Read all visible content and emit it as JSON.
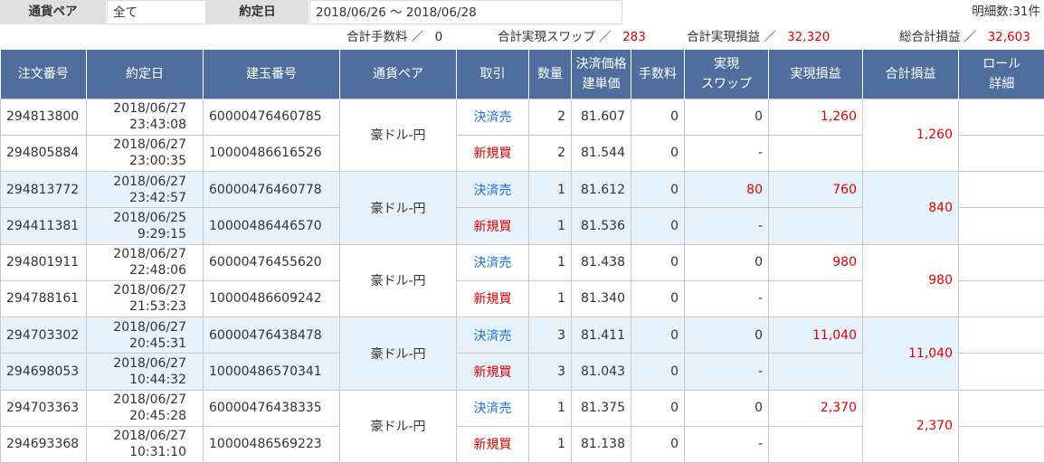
{
  "filter": {
    "pair_label": "通貨ペア",
    "pair_value": "全て",
    "date_label": "約定日",
    "date_value": "2018/06/26 ～ 2018/06/28",
    "row_count": "明細数:31件"
  },
  "totals": {
    "fee_label": "合計手数料 ／",
    "fee_value": "0",
    "swap_label": "合計実現スワップ ／",
    "swap_value": "283",
    "pl_label": "合計実現損益 ／",
    "pl_value": "32,320",
    "grand_label": "総合計損益 ／",
    "grand_value": "32,603"
  },
  "table": {
    "headers": {
      "order_no": "注文番号",
      "exec_date": "約定日",
      "position_no": "建玉番号",
      "pair": "通貨ペア",
      "trade": "取引",
      "qty": "数量",
      "price_1": "決済価格",
      "price_2": "建単価",
      "fee": "手数料",
      "swap_1": "実現",
      "swap_2": "スワップ",
      "realized_pl": "実現損益",
      "total_pl": "合計損益",
      "roll_1": "ロール",
      "roll_2": "詳細"
    },
    "groups": [
      {
        "pair": "豪ドル-円",
        "total_pl": "1,260",
        "rows": [
          {
            "order_no": "294813800",
            "date": "2018/06/27",
            "time": "23:43:08",
            "position_no": "60000476460785",
            "trade": "決済売",
            "qty": "2",
            "price": "81.607",
            "fee": "0",
            "swap": "0",
            "pl": "1,260"
          },
          {
            "order_no": "294805884",
            "date": "2018/06/27",
            "time": "23:00:35",
            "position_no": "10000486616526",
            "trade": "新規買",
            "qty": "2",
            "price": "81.544",
            "fee": "0",
            "swap": "-",
            "pl": ""
          }
        ]
      },
      {
        "pair": "豪ドル-円",
        "total_pl": "840",
        "rows": [
          {
            "order_no": "294813772",
            "date": "2018/06/27",
            "time": "23:42:57",
            "position_no": "60000476460778",
            "trade": "決済売",
            "qty": "1",
            "price": "81.612",
            "fee": "0",
            "swap": "80",
            "pl": "760"
          },
          {
            "order_no": "294411381",
            "date": "2018/06/25",
            "time": "9:29:15",
            "position_no": "10000486446570",
            "trade": "新規買",
            "qty": "1",
            "price": "81.536",
            "fee": "0",
            "swap": "-",
            "pl": ""
          }
        ]
      },
      {
        "pair": "豪ドル-円",
        "total_pl": "980",
        "rows": [
          {
            "order_no": "294801911",
            "date": "2018/06/27",
            "time": "22:48:06",
            "position_no": "60000476455620",
            "trade": "決済売",
            "qty": "1",
            "price": "81.438",
            "fee": "0",
            "swap": "0",
            "pl": "980"
          },
          {
            "order_no": "294788161",
            "date": "2018/06/27",
            "time": "21:53:23",
            "position_no": "10000486609242",
            "trade": "新規買",
            "qty": "1",
            "price": "81.340",
            "fee": "0",
            "swap": "-",
            "pl": ""
          }
        ]
      },
      {
        "pair": "豪ドル-円",
        "total_pl": "11,040",
        "rows": [
          {
            "order_no": "294703302",
            "date": "2018/06/27",
            "time": "20:45:31",
            "position_no": "60000476438478",
            "trade": "決済売",
            "qty": "3",
            "price": "81.411",
            "fee": "0",
            "swap": "0",
            "pl": "11,040"
          },
          {
            "order_no": "294698053",
            "date": "2018/06/27",
            "time": "10:44:32",
            "position_no": "10000486570341",
            "trade": "新規買",
            "qty": "3",
            "price": "81.043",
            "fee": "0",
            "swap": "-",
            "pl": ""
          }
        ]
      },
      {
        "pair": "豪ドル-円",
        "total_pl": "2,370",
        "rows": [
          {
            "order_no": "294703363",
            "date": "2018/06/27",
            "time": "20:45:28",
            "position_no": "60000476438335",
            "trade": "決済売",
            "qty": "1",
            "price": "81.375",
            "fee": "0",
            "swap": "0",
            "pl": "2,370"
          },
          {
            "order_no": "294693368",
            "date": "2018/06/27",
            "time": "10:31:10",
            "position_no": "10000486569223",
            "trade": "新規買",
            "qty": "1",
            "price": "81.138",
            "fee": "0",
            "swap": "-",
            "pl": ""
          }
        ]
      }
    ]
  },
  "colors": {
    "header_bg": "#4f6e9e",
    "alt_row_bg": "#e6f2fb",
    "profit": "#e00000",
    "settle_sell": "#1a6fd1",
    "new_buy": "#e00000"
  }
}
